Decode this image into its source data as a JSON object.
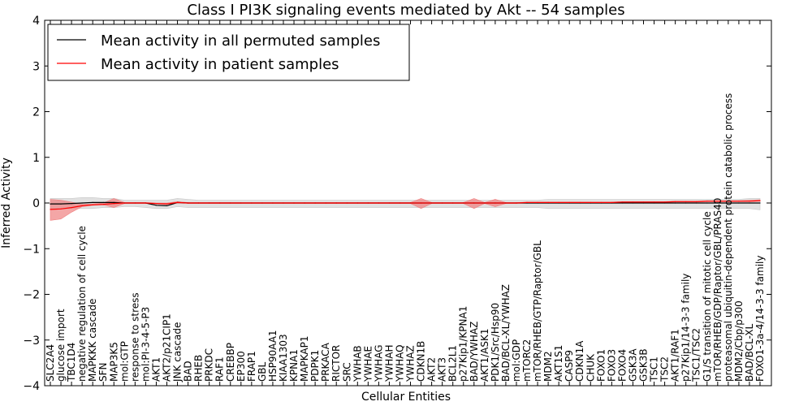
{
  "chart_data": {
    "type": "line",
    "title": "Class I PI3K signaling events mediated by Akt -- 54 samples",
    "xlabel": "Cellular Entities",
    "ylabel": "Inferred Activity",
    "ylim": [
      -4,
      4
    ],
    "yticks": [
      -4,
      -3,
      -2,
      -1,
      0,
      1,
      2,
      3,
      4
    ],
    "ytick_labels": [
      "−4",
      "−3",
      "−2",
      "−1",
      "0",
      "1",
      "2",
      "3",
      "4"
    ],
    "grid": false,
    "legend_position": "top-left",
    "categories": [
      "SLC2A4",
      "glucose import",
      "TBC1D4",
      "negative regulation of cell cycle",
      "MAPKKK cascade",
      "SFN",
      "MAP3K5",
      "mol:GTP",
      "response to stress",
      "mol:PI-3-4-5-P3",
      "AKT1",
      "AKT2/p21CIP1",
      "JNK cascade",
      "BAD",
      "RHEB",
      "PRKDC",
      "RAF1",
      "CREBBP",
      "EP300",
      "FRAP1",
      "GBL",
      "HSP90AA1",
      "KIAA1303",
      "KPNA1",
      "MAPKAP1",
      "PDPK1",
      "PRKACA",
      "RICTOR",
      "SRC",
      "YWHAB",
      "YWHAE",
      "YWHAG",
      "YWHAH",
      "YWHAQ",
      "YWHAZ",
      "CDKN1B",
      "AKT2",
      "AKT3",
      "BCL2L1",
      "p27Kip1/KPNA1",
      "BAD/YWHAZ",
      "AKT1/ASK1",
      "PDK1/Src/Hsp90",
      "BAD/BCL-XL/YWHAZ",
      "mol:GDP",
      "mTORC2",
      "mTOR/RHEB/GTP/Raptor/GBL",
      "MDM2",
      "AKT1S1",
      "CASP9",
      "CDKN1A",
      "CHUK",
      "FOXO1",
      "FOXO3",
      "FOXO4",
      "GSK3A",
      "GSK3B",
      "TSC1",
      "TSC2",
      "AKT1/RAF1",
      "p27Kip1/14-3-3 family",
      "TSC1/TSC2",
      "G1/S transition of mitotic cell cycle",
      "mTOR/RHEB/GDP/Raptor/GBL/PRAS40",
      "proteasomal ubiquitin-dependent protein catabolic process",
      "MDM2/Cbp/p300",
      "BAD/BCL-XL",
      "FOXO1-3a-4/14-3-3 family"
    ],
    "series": [
      {
        "name": "Mean activity in all permuted samples",
        "color": "#000000",
        "band_color": "#c8c8c8",
        "values": [
          -0.02,
          -0.02,
          -0.01,
          0.0,
          0.01,
          0.01,
          0.01,
          0.0,
          0.0,
          0.0,
          -0.05,
          -0.06,
          0.01,
          0.0,
          0.0,
          0.0,
          0.0,
          0.0,
          0.0,
          0.0,
          0.0,
          0.0,
          0.0,
          0.0,
          0.0,
          0.0,
          0.0,
          0.0,
          0.0,
          0.0,
          0.0,
          0.0,
          0.0,
          0.0,
          0.0,
          0.0,
          0.0,
          0.0,
          0.0,
          0.0,
          0.0,
          0.0,
          0.0,
          0.0,
          0.0,
          0.0,
          0.0,
          0.0,
          0.0,
          0.0,
          0.0,
          0.0,
          0.0,
          0.0,
          0.0,
          0.0,
          0.0,
          0.0,
          0.0,
          0.0,
          0.0,
          0.0,
          0.0,
          0.0,
          0.0,
          0.0,
          0.0,
          0.0
        ],
        "band_low": [
          -0.12,
          -0.12,
          -0.12,
          -0.12,
          -0.12,
          -0.1,
          -0.1,
          -0.08,
          -0.08,
          -0.1,
          -0.12,
          -0.12,
          -0.08,
          -0.1,
          -0.1,
          -0.1,
          -0.1,
          -0.1,
          -0.1,
          -0.1,
          -0.1,
          -0.1,
          -0.1,
          -0.1,
          -0.1,
          -0.1,
          -0.1,
          -0.1,
          -0.1,
          -0.1,
          -0.1,
          -0.1,
          -0.1,
          -0.1,
          -0.1,
          -0.1,
          -0.1,
          -0.1,
          -0.1,
          -0.1,
          -0.1,
          -0.1,
          -0.1,
          -0.1,
          -0.1,
          -0.1,
          -0.1,
          -0.12,
          -0.12,
          -0.12,
          -0.12,
          -0.12,
          -0.12,
          -0.12,
          -0.12,
          -0.12,
          -0.12,
          -0.12,
          -0.12,
          -0.12,
          -0.12,
          -0.12,
          -0.12,
          -0.12,
          -0.12,
          -0.12,
          -0.12,
          -0.15
        ],
        "band_high": [
          0.1,
          0.1,
          0.1,
          0.12,
          0.12,
          0.1,
          0.1,
          0.06,
          0.06,
          0.06,
          0.06,
          0.06,
          0.1,
          0.08,
          0.06,
          0.06,
          0.06,
          0.06,
          0.06,
          0.06,
          0.06,
          0.06,
          0.06,
          0.06,
          0.06,
          0.06,
          0.06,
          0.06,
          0.06,
          0.06,
          0.06,
          0.06,
          0.06,
          0.06,
          0.06,
          0.06,
          0.06,
          0.06,
          0.06,
          0.06,
          0.06,
          0.06,
          0.06,
          0.06,
          0.06,
          0.06,
          0.06,
          0.08,
          0.08,
          0.08,
          0.08,
          0.08,
          0.08,
          0.08,
          0.08,
          0.08,
          0.08,
          0.08,
          0.08,
          0.08,
          0.08,
          0.08,
          0.08,
          0.08,
          0.08,
          0.08,
          0.1,
          0.1
        ]
      },
      {
        "name": "Mean activity in patient samples",
        "color": "#ff0000",
        "band_color": "#f08080",
        "values": [
          -0.14,
          -0.13,
          -0.1,
          -0.06,
          -0.04,
          -0.03,
          -0.01,
          0.0,
          0.0,
          0.0,
          -0.01,
          -0.02,
          0.01,
          0.0,
          0.0,
          0.0,
          0.0,
          0.0,
          0.0,
          0.0,
          0.0,
          0.0,
          0.0,
          0.0,
          0.0,
          0.0,
          0.0,
          0.0,
          0.0,
          0.0,
          0.0,
          0.0,
          0.0,
          0.0,
          0.0,
          0.0,
          0.0,
          0.0,
          0.0,
          0.0,
          0.0,
          0.0,
          0.0,
          0.0,
          0.0,
          0.01,
          0.01,
          0.01,
          0.01,
          0.01,
          0.01,
          0.01,
          0.01,
          0.01,
          0.02,
          0.02,
          0.02,
          0.02,
          0.02,
          0.03,
          0.03,
          0.03,
          0.04,
          0.04,
          0.04,
          0.04,
          0.04,
          0.05
        ],
        "band_low": [
          -0.38,
          -0.35,
          -0.2,
          -0.08,
          -0.05,
          -0.04,
          -0.1,
          -0.01,
          -0.01,
          -0.01,
          -0.02,
          -0.03,
          0.0,
          -0.01,
          -0.01,
          -0.01,
          -0.01,
          -0.01,
          -0.01,
          -0.01,
          -0.01,
          -0.01,
          -0.01,
          -0.01,
          -0.01,
          -0.01,
          -0.01,
          -0.01,
          -0.01,
          -0.01,
          -0.01,
          -0.01,
          -0.01,
          -0.01,
          -0.01,
          -0.12,
          -0.01,
          -0.01,
          -0.01,
          -0.01,
          -0.12,
          -0.01,
          -0.08,
          -0.01,
          -0.01,
          0.0,
          0.0,
          0.0,
          0.0,
          0.0,
          0.0,
          0.0,
          0.0,
          0.0,
          0.01,
          0.01,
          0.01,
          0.01,
          0.01,
          0.02,
          0.02,
          0.02,
          0.03,
          0.03,
          0.03,
          0.03,
          0.03,
          0.04
        ],
        "band_high": [
          0.08,
          0.06,
          0.02,
          -0.03,
          -0.02,
          0.0,
          0.1,
          0.01,
          0.01,
          0.01,
          0.0,
          0.0,
          0.03,
          0.01,
          0.01,
          0.01,
          0.01,
          0.01,
          0.01,
          0.01,
          0.01,
          0.01,
          0.01,
          0.01,
          0.01,
          0.01,
          0.01,
          0.01,
          0.01,
          0.01,
          0.01,
          0.01,
          0.01,
          0.01,
          0.01,
          0.1,
          0.01,
          0.01,
          0.01,
          0.01,
          0.1,
          0.01,
          0.08,
          0.01,
          0.01,
          0.02,
          0.02,
          0.02,
          0.02,
          0.02,
          0.02,
          0.02,
          0.02,
          0.02,
          0.03,
          0.03,
          0.03,
          0.03,
          0.03,
          0.04,
          0.04,
          0.04,
          0.05,
          0.05,
          0.05,
          0.05,
          0.06,
          0.07
        ]
      }
    ]
  }
}
